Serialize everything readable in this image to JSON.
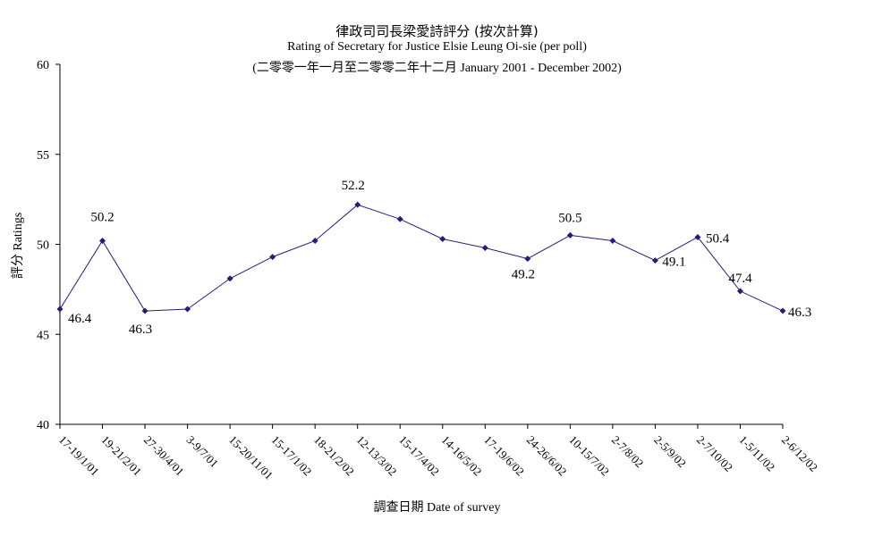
{
  "chart_data": {
    "type": "line",
    "title": "律政司司長梁愛詩評分 (按次計算)",
    "subtitle": "Rating of Secretary for Justice Elsie Leung Oi-sie  (per poll)",
    "period": "(二零零一年一月至二零零二年十二月 January 2001 - December 2002)",
    "xlabel": "調查日期 Date of survey",
    "ylabel": "評分 Ratings",
    "ylim": [
      40,
      60
    ],
    "yticks": [
      "40",
      "45",
      "50",
      "55",
      "60"
    ],
    "categories": [
      "17-19/1/01",
      "19-21/2/01",
      "27-30/4/01",
      "3-9/7/01",
      "15-20/11/01",
      "15-17/1/02",
      "18-21/2/02",
      "12-13/3/02",
      "15-17/4/02",
      "14-16/5/02",
      "17-19/6/02",
      "24-26/6/02",
      "10-15/7/02",
      "2-7/8/02",
      "2-5/9/02",
      "2-7/10/02",
      "1-5/11/02",
      "2-6/12/02"
    ],
    "values": [
      46.4,
      50.2,
      46.3,
      46.4,
      48.1,
      49.3,
      50.2,
      52.2,
      51.4,
      50.3,
      49.8,
      49.2,
      50.5,
      50.2,
      49.1,
      50.4,
      47.4,
      46.3
    ],
    "data_labels": [
      {
        "index": 0,
        "text": "46.4"
      },
      {
        "index": 1,
        "text": "50.2"
      },
      {
        "index": 2,
        "text": "46.3"
      },
      {
        "index": 7,
        "text": "52.2"
      },
      {
        "index": 11,
        "text": "49.2"
      },
      {
        "index": 12,
        "text": "50.5"
      },
      {
        "index": 14,
        "text": "49.1"
      },
      {
        "index": 15,
        "text": "50.4"
      },
      {
        "index": 16,
        "text": "47.4"
      },
      {
        "index": 17,
        "text": "46.3"
      }
    ],
    "line_color": "#1f1f7a",
    "grid": false,
    "legend": "none"
  }
}
